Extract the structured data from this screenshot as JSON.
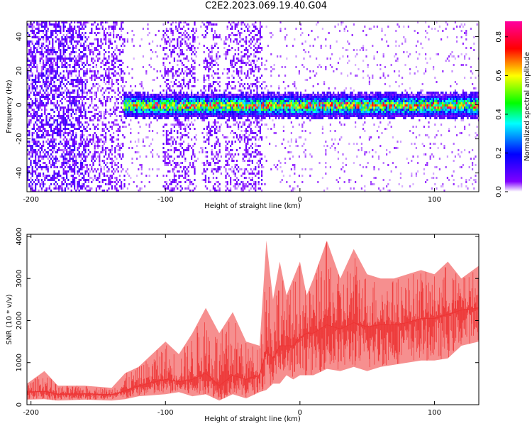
{
  "title": "C2E2.2023.069.19.40.G04",
  "chart_data": [
    {
      "type": "heatmap",
      "xlabel": "Height of straight line (km)",
      "ylabel": "Frequency (Hz)",
      "xlim": [
        -203,
        133
      ],
      "ylim": [
        -51,
        49
      ],
      "xticks": [
        -200,
        -100,
        0,
        100
      ],
      "yticks": [
        -40,
        -20,
        0,
        20,
        40
      ],
      "colorbar": {
        "label": "Normalized spectral amplitude",
        "range": [
          0.0,
          0.88
        ],
        "ticks": [
          0.0,
          0.2,
          0.4,
          0.6,
          0.8
        ],
        "tick_labels": [
          "0.0",
          "0.2",
          "0.4",
          "0.6",
          "0.8"
        ],
        "colormap": [
          "#ffffff",
          "#8000ff",
          "#0000ff",
          "#00ffff",
          "#00ff00",
          "#ffff00",
          "#ff0000",
          "#ff00a0"
        ]
      },
      "signal": {
        "center_hz": 0,
        "halfwidth_hz": 4,
        "start_km": -132,
        "peak_amplitude": 0.85
      },
      "broadband_noise_bands_km": [
        [
          -203,
          -130
        ],
        [
          -103,
          -78
        ],
        [
          -72,
          -60
        ],
        [
          -56,
          -28
        ]
      ]
    },
    {
      "type": "line",
      "color": "#ee3333",
      "xlabel": "Height of straight line (km)",
      "ylabel": "SNR (10 * v/v)",
      "xlim": [
        -203,
        133
      ],
      "ylim": [
        0,
        4050
      ],
      "xticks": [
        -200,
        -100,
        0,
        100
      ],
      "yticks": [
        0,
        1000,
        2000,
        3000,
        4000
      ],
      "x": [
        -203,
        -190,
        -180,
        -160,
        -140,
        -130,
        -120,
        -100,
        -90,
        -80,
        -70,
        -60,
        -50,
        -40,
        -30,
        -25,
        -20,
        -15,
        -10,
        -5,
        0,
        5,
        10,
        20,
        30,
        40,
        50,
        60,
        70,
        80,
        90,
        100,
        110,
        120,
        133
      ],
      "envelope_low": [
        120,
        130,
        100,
        120,
        100,
        130,
        200,
        250,
        300,
        200,
        250,
        100,
        250,
        150,
        300,
        350,
        500,
        500,
        700,
        600,
        700,
        700,
        700,
        850,
        800,
        900,
        800,
        900,
        950,
        1000,
        1050,
        1050,
        1100,
        1400,
        1500
      ],
      "envelope_high": [
        500,
        800,
        450,
        450,
        400,
        750,
        900,
        1500,
        1200,
        1700,
        2300,
        1700,
        2200,
        1500,
        1400,
        3900,
        2500,
        3400,
        2600,
        3000,
        3400,
        2600,
        3000,
        3900,
        3000,
        3700,
        3100,
        3000,
        3000,
        3100,
        3200,
        3100,
        3400,
        3000,
        3300
      ],
      "mean": [
        300,
        320,
        250,
        260,
        240,
        330,
        450,
        600,
        550,
        600,
        750,
        450,
        700,
        600,
        700,
        1300,
        1100,
        1400,
        1400,
        1400,
        1600,
        1700,
        1700,
        1900,
        1800,
        1950,
        1850,
        1900,
        1900,
        1950,
        2050,
        2050,
        2150,
        2250,
        2300
      ]
    }
  ]
}
